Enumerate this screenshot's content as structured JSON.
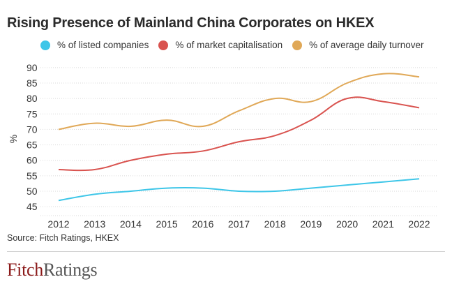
{
  "header": {
    "title": "Rising Presence of Mainland China Corporates on HKEX"
  },
  "footer": {
    "source": "Source: Fitch Ratings, HKEX",
    "logo_part1": "Fitch",
    "logo_part2": "Ratings"
  },
  "chart_data": {
    "type": "line",
    "title": "Rising Presence of Mainland China Corporates on HKEX",
    "xlabel": "",
    "ylabel": "%",
    "categories": [
      "2012",
      "2013",
      "2014",
      "2015",
      "2016",
      "2017",
      "2018",
      "2019",
      "2020",
      "2021",
      "2022"
    ],
    "y_ticks": [
      45,
      50,
      55,
      60,
      65,
      70,
      75,
      80,
      85,
      90
    ],
    "ylim": [
      43,
      92
    ],
    "grid": true,
    "legend_position": "top",
    "series": [
      {
        "name": "% of listed companies",
        "color": "#3ec6e8",
        "values": [
          47,
          49,
          50,
          51,
          51,
          50,
          50,
          51,
          52,
          53,
          54
        ]
      },
      {
        "name": "% of market capitalisation",
        "color": "#d9534f",
        "values": [
          57,
          57,
          60,
          62,
          63,
          66,
          68,
          73,
          80,
          79,
          77
        ]
      },
      {
        "name": "% of average daily turnover",
        "color": "#e0a857",
        "values": [
          70,
          72,
          71,
          73,
          71,
          76,
          80,
          79,
          85,
          88,
          87
        ]
      }
    ]
  }
}
